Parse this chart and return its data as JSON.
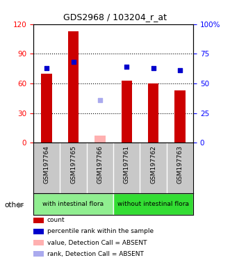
{
  "title": "GDS2968 / 103204_r_at",
  "samples": [
    "GSM197764",
    "GSM197765",
    "GSM197766",
    "GSM197761",
    "GSM197762",
    "GSM197763"
  ],
  "count_values": [
    70,
    113,
    null,
    63,
    60,
    53
  ],
  "count_absent_values": [
    null,
    null,
    7,
    null,
    null,
    null
  ],
  "percentile_values": [
    63,
    68,
    null,
    64,
    63,
    61
  ],
  "percentile_absent_values": [
    null,
    null,
    36,
    null,
    null,
    null
  ],
  "left_ylim": [
    0,
    120
  ],
  "right_ylim": [
    0,
    100
  ],
  "left_yticks": [
    0,
    30,
    60,
    90,
    120
  ],
  "right_yticks": [
    0,
    25,
    50,
    75,
    100
  ],
  "right_yticklabels": [
    "0",
    "25",
    "50",
    "75",
    "100%"
  ],
  "bar_color": "#CC0000",
  "absent_bar_color": "#FFB0B0",
  "dot_color": "#0000CC",
  "absent_dot_color": "#AAAAEE",
  "bar_width": 0.4,
  "dot_size": 25,
  "bg_color": "#C8C8C8",
  "group1_color": "#90EE90",
  "group2_color": "#33DD33",
  "legend_items": [
    {
      "label": "count",
      "color": "#CC0000"
    },
    {
      "label": "percentile rank within the sample",
      "color": "#0000CC"
    },
    {
      "label": "value, Detection Call = ABSENT",
      "color": "#FFB0B0"
    },
    {
      "label": "rank, Detection Call = ABSENT",
      "color": "#AAAAEE"
    }
  ]
}
